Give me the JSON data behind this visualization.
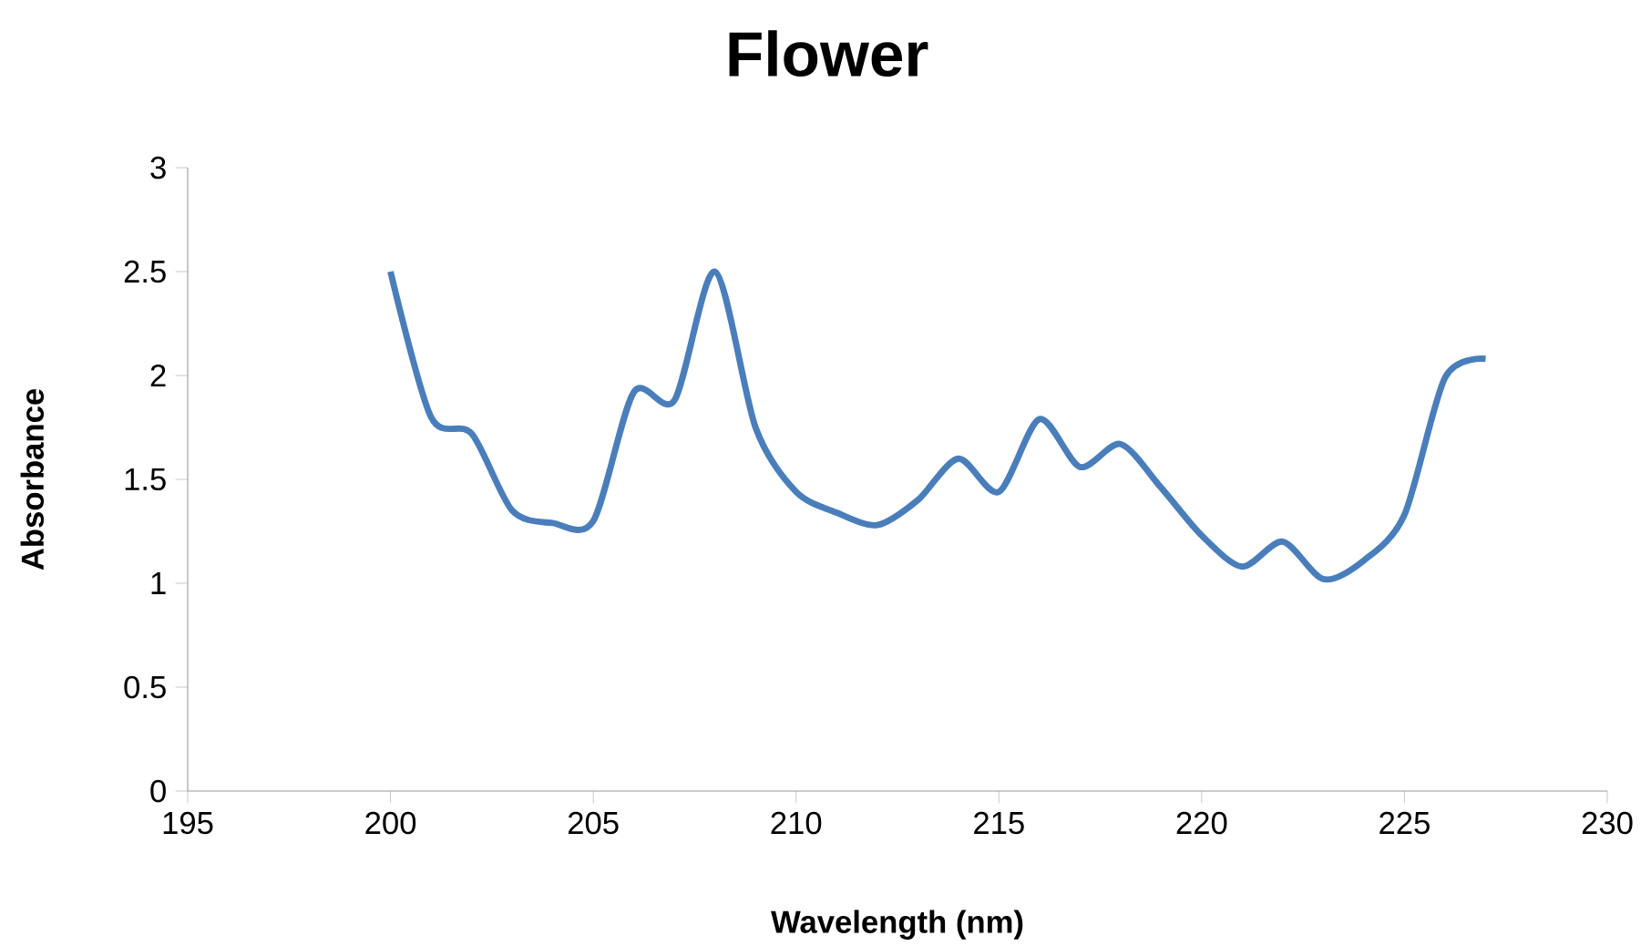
{
  "chart_data": {
    "type": "line",
    "title": "Flower",
    "xlabel": "Wavelength (nm)",
    "ylabel": "Absorbance",
    "xlim": [
      195,
      230
    ],
    "xticks": [
      195,
      200,
      205,
      210,
      215,
      220,
      225,
      230
    ],
    "ylim": [
      0,
      3
    ],
    "yticks": [
      0,
      0.5,
      1,
      1.5,
      2,
      2.5,
      3
    ],
    "marker": "none",
    "line_style": "solid",
    "series": [
      {
        "color": "#4a7ebb",
        "x": [
          200,
          201,
          202,
          203,
          204,
          205,
          206,
          207,
          208,
          209,
          210,
          211,
          212,
          213,
          214,
          215,
          216,
          217,
          218,
          219,
          220,
          221,
          222,
          223,
          224,
          225,
          226,
          227
        ],
        "values": [
          2.5,
          1.8,
          1.72,
          1.35,
          1.29,
          1.3,
          1.92,
          1.88,
          2.5,
          1.75,
          1.44,
          1.34,
          1.28,
          1.4,
          1.6,
          1.44,
          1.79,
          1.56,
          1.67,
          1.46,
          1.23,
          1.08,
          1.2,
          1.02,
          1.11,
          1.33,
          1.99,
          2.08
        ]
      }
    ]
  }
}
